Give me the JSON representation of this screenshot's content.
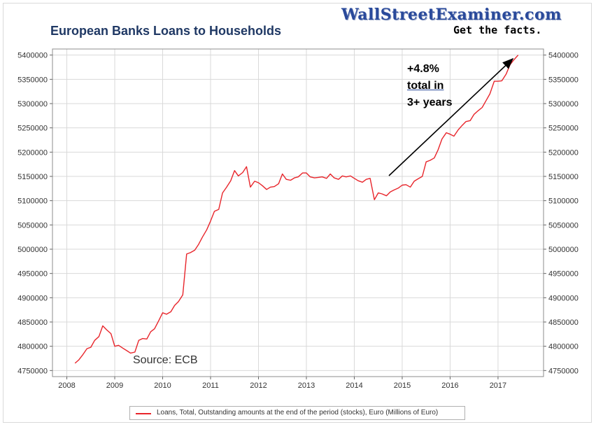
{
  "brand": {
    "name": "WallStreetExaminer.com",
    "tagline": "Get the facts."
  },
  "source_note": "Source: ECB",
  "annotation": {
    "line1": "+4.8%",
    "line2": "total in",
    "line3": "3+ years"
  },
  "colors": {
    "series": "#e8252b",
    "grid": "#d9d9d9",
    "title": "#1f3864"
  },
  "chart_data": {
    "type": "line",
    "title": "European Banks Loans to Households",
    "xlim": [
      2007.7,
      2017.95
    ],
    "ylim": [
      4737500,
      5412500
    ],
    "x_ticks": [
      2008,
      2009,
      2010,
      2011,
      2012,
      2013,
      2014,
      2015,
      2016,
      2017
    ],
    "x_tick_labels": [
      "2008",
      "2009",
      "2010",
      "2011",
      "2012",
      "2013",
      "2014",
      "2015",
      "2016",
      "2017"
    ],
    "y_ticks": [
      4750000,
      4800000,
      4850000,
      4900000,
      4950000,
      5000000,
      5050000,
      5100000,
      5150000,
      5200000,
      5250000,
      5300000,
      5350000,
      5400000
    ],
    "y_tick_labels": [
      "4750000",
      "4800000",
      "4850000",
      "4900000",
      "4950000",
      "5000000",
      "5050000",
      "5100000",
      "5150000",
      "5200000",
      "5250000",
      "5300000",
      "5350000",
      "5400000"
    ],
    "grid": true,
    "axes_on_both_sides": true,
    "legend": "bottom",
    "series": [
      {
        "name": "Loans, Total, Outstanding amounts at the end of the period (stocks), Euro (Millions of Euro)",
        "color": "#e8252b",
        "x": [
          2008.17,
          2008.25,
          2008.33,
          2008.42,
          2008.5,
          2008.58,
          2008.67,
          2008.75,
          2008.83,
          2008.92,
          2009.0,
          2009.08,
          2009.17,
          2009.25,
          2009.33,
          2009.42,
          2009.5,
          2009.58,
          2009.67,
          2009.75,
          2009.83,
          2009.92,
          2010.0,
          2010.08,
          2010.17,
          2010.25,
          2010.33,
          2010.42,
          2010.5,
          2010.58,
          2010.67,
          2010.75,
          2010.83,
          2010.92,
          2011.0,
          2011.08,
          2011.17,
          2011.25,
          2011.33,
          2011.42,
          2011.5,
          2011.58,
          2011.67,
          2011.75,
          2011.83,
          2011.92,
          2012.0,
          2012.08,
          2012.17,
          2012.25,
          2012.33,
          2012.42,
          2012.5,
          2012.58,
          2012.67,
          2012.75,
          2012.83,
          2012.92,
          2013.0,
          2013.08,
          2013.17,
          2013.25,
          2013.33,
          2013.42,
          2013.5,
          2013.58,
          2013.67,
          2013.75,
          2013.83,
          2013.92,
          2014.0,
          2014.08,
          2014.17,
          2014.25,
          2014.33,
          2014.42,
          2014.5,
          2014.58,
          2014.67,
          2014.75,
          2014.83,
          2014.92,
          2015.0,
          2015.08,
          2015.17,
          2015.25,
          2015.33,
          2015.42,
          2015.5,
          2015.58,
          2015.67,
          2015.75,
          2015.83,
          2015.92,
          2016.0,
          2016.08,
          2016.17,
          2016.25,
          2016.33,
          2016.42,
          2016.5,
          2016.58,
          2016.67,
          2016.75,
          2016.83,
          2016.92,
          2017.0,
          2017.08,
          2017.17,
          2017.25,
          2017.33,
          2017.42
        ],
        "values": [
          4765000,
          4772000,
          4782000,
          4795000,
          4798000,
          4812000,
          4820000,
          4842000,
          4834000,
          4826000,
          4800000,
          4802000,
          4796000,
          4791000,
          4786000,
          4788000,
          4812000,
          4816000,
          4815000,
          4830000,
          4836000,
          4853000,
          4869000,
          4866000,
          4871000,
          4884000,
          4892000,
          4906000,
          4990000,
          4993000,
          4998000,
          5010000,
          5025000,
          5040000,
          5058000,
          5078000,
          5082000,
          5116000,
          5127000,
          5141000,
          5162000,
          5151000,
          5158000,
          5170000,
          5128000,
          5140000,
          5137000,
          5131000,
          5123000,
          5128000,
          5129000,
          5135000,
          5155000,
          5144000,
          5142000,
          5147000,
          5149000,
          5157000,
          5157000,
          5149000,
          5147000,
          5148000,
          5149000,
          5146000,
          5155000,
          5147000,
          5144000,
          5151000,
          5149000,
          5151000,
          5146000,
          5141000,
          5138000,
          5144000,
          5146000,
          5102000,
          5116000,
          5114000,
          5110000,
          5118000,
          5122000,
          5126000,
          5132000,
          5133000,
          5128000,
          5140000,
          5145000,
          5150000,
          5180000,
          5183000,
          5188000,
          5205000,
          5227000,
          5240000,
          5237000,
          5233000,
          5246000,
          5255000,
          5263000,
          5265000,
          5278000,
          5285000,
          5292000,
          5306000,
          5320000,
          5346000,
          5346000,
          5347000,
          5361000,
          5380000,
          5390000,
          5400000
        ]
      }
    ]
  }
}
